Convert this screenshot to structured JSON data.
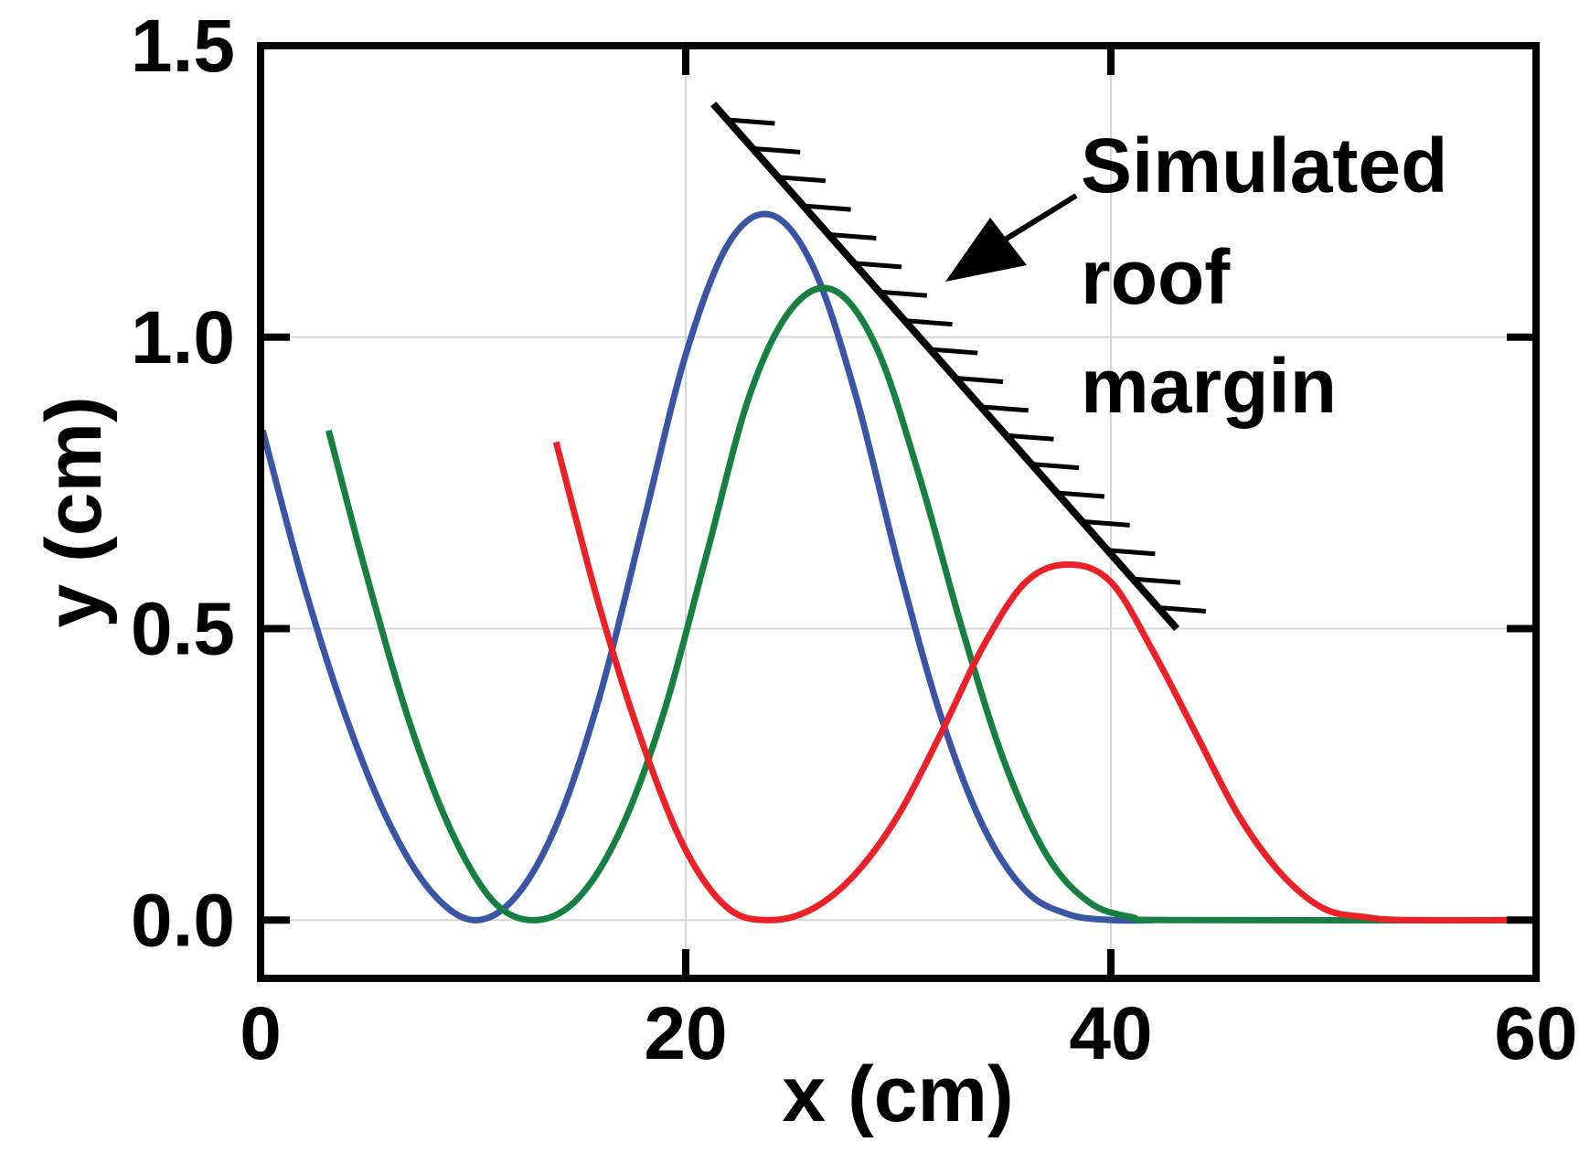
{
  "chart_data": {
    "type": "line",
    "title": "",
    "xlabel": "x (cm)",
    "ylabel": "y (cm)",
    "xlim": [
      0,
      60
    ],
    "ylim": [
      -0.1,
      1.5
    ],
    "xticks": [
      0,
      20,
      40,
      60
    ],
    "xtick_labels": [
      "0",
      "20",
      "40",
      "60"
    ],
    "yticks": [
      0.0,
      0.5,
      1.0,
      1.5
    ],
    "ytick_labels": [
      "0.0",
      "0.5",
      "1.0",
      "1.5"
    ],
    "grid": true,
    "legend": "none",
    "series": [
      {
        "color": "#3b55a6",
        "points": [
          [
            0.1,
            0.84
          ],
          [
            2,
            0.58
          ],
          [
            4,
            0.35
          ],
          [
            6,
            0.17
          ],
          [
            8,
            0.05
          ],
          [
            10,
            0.0
          ],
          [
            12,
            0.04
          ],
          [
            14,
            0.17
          ],
          [
            16,
            0.39
          ],
          [
            18,
            0.68
          ],
          [
            20,
            0.97
          ],
          [
            22,
            1.16
          ],
          [
            24,
            1.21
          ],
          [
            26,
            1.12
          ],
          [
            28,
            0.9
          ],
          [
            30,
            0.61
          ],
          [
            32,
            0.35
          ],
          [
            34,
            0.16
          ],
          [
            36,
            0.05
          ],
          [
            38,
            0.01
          ],
          [
            40,
            0.0
          ],
          [
            42,
            0.0
          ]
        ]
      },
      {
        "color": "#15803f",
        "points": [
          [
            3.2,
            0.84
          ],
          [
            5,
            0.59
          ],
          [
            7,
            0.34
          ],
          [
            9,
            0.15
          ],
          [
            11,
            0.03
          ],
          [
            13,
            0.0
          ],
          [
            15,
            0.04
          ],
          [
            17,
            0.16
          ],
          [
            19,
            0.36
          ],
          [
            21,
            0.63
          ],
          [
            23,
            0.9
          ],
          [
            25,
            1.05
          ],
          [
            27,
            1.08
          ],
          [
            29,
            0.98
          ],
          [
            31,
            0.76
          ],
          [
            33,
            0.5
          ],
          [
            35,
            0.27
          ],
          [
            37,
            0.11
          ],
          [
            39,
            0.03
          ],
          [
            41,
            0.005
          ],
          [
            43,
            0.0
          ],
          [
            60,
            0.0
          ]
        ]
      },
      {
        "color": "#ec2127",
        "points": [
          [
            13.9,
            0.82
          ],
          [
            16,
            0.53
          ],
          [
            18,
            0.3
          ],
          [
            20,
            0.12
          ],
          [
            22,
            0.02
          ],
          [
            24,
            0.0
          ],
          [
            26,
            0.02
          ],
          [
            28,
            0.08
          ],
          [
            30,
            0.18
          ],
          [
            32,
            0.32
          ],
          [
            34,
            0.47
          ],
          [
            36,
            0.58
          ],
          [
            38,
            0.61
          ],
          [
            40,
            0.58
          ],
          [
            42,
            0.46
          ],
          [
            44,
            0.32
          ],
          [
            46,
            0.18
          ],
          [
            48,
            0.08
          ],
          [
            50,
            0.02
          ],
          [
            52,
            0.005
          ],
          [
            54,
            0.0
          ],
          [
            60,
            0.0
          ]
        ]
      }
    ],
    "roof_line": {
      "color": "#000000",
      "start": [
        21.3,
        1.4
      ],
      "end": [
        43.1,
        0.5
      ]
    },
    "annotations": [
      {
        "text_lines": [
          "Simulated",
          "roof",
          "margin"
        ]
      }
    ]
  }
}
